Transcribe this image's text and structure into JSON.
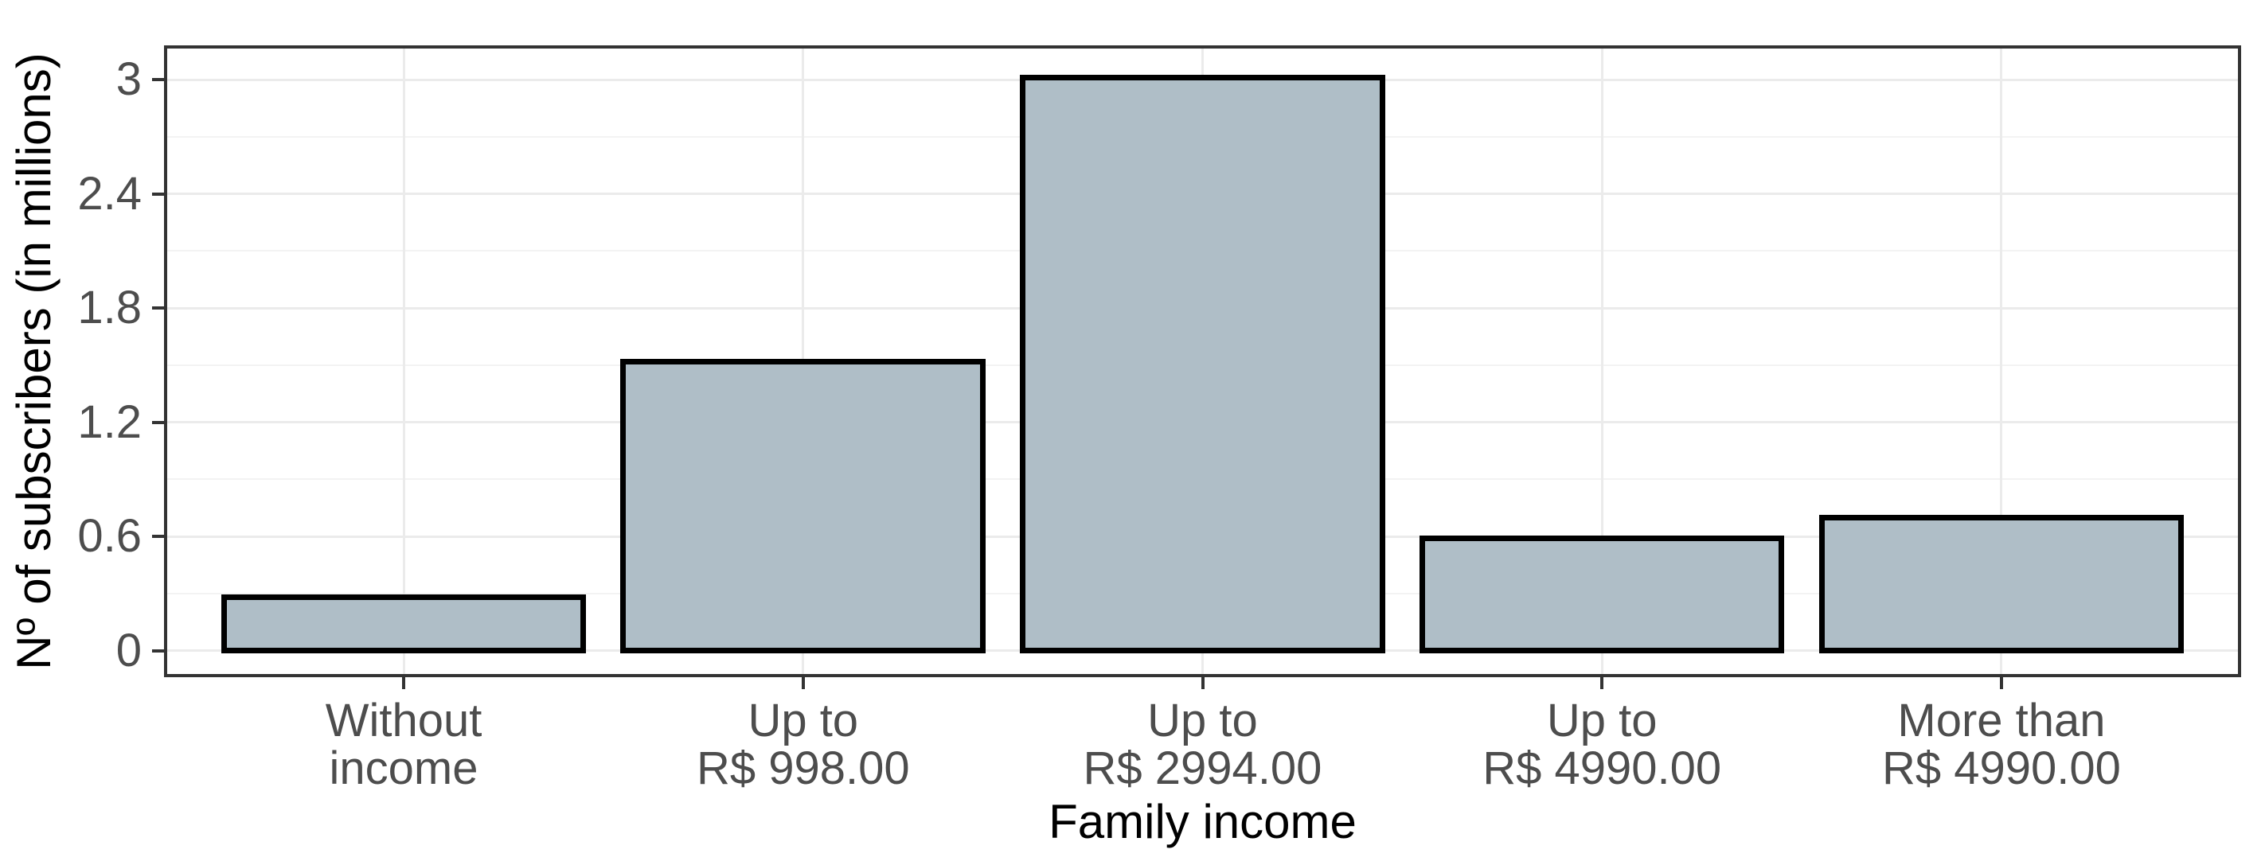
{
  "figure": {
    "background": "#FFFFFF"
  },
  "chart_data": {
    "type": "bar",
    "title": "",
    "xlabel": "Family income",
    "ylabel": "Nº of subscribers (in millions)",
    "categories": [
      [
        "Without",
        "income"
      ],
      [
        "Up to",
        "R$ 998.00"
      ],
      [
        "Up to",
        "R$ 2994.00"
      ],
      [
        "Up to",
        "R$ 4990.00"
      ],
      [
        "More than",
        "R$ 4990.00"
      ]
    ],
    "values": [
      0.28,
      1.52,
      3.01,
      0.59,
      0.7
    ],
    "yticks": [
      0,
      0.6,
      1.2,
      1.8,
      2.4,
      3
    ],
    "ytick_labels": [
      "0",
      "0.6",
      "1.2",
      "1.8",
      "2.4",
      "3"
    ],
    "minor_yticks": [
      0.3,
      0.9,
      1.5,
      2.1,
      2.7
    ],
    "ylim": [
      -0.14,
      3.18
    ],
    "bar_width_fraction": 0.9,
    "x_expand": 0.6,
    "grid": "horizontal major+minor, vertical major at category centers",
    "legend": "none"
  },
  "style": {
    "bar_fill": "#AFBEC7",
    "bar_stroke": "#000000",
    "panel_border": "#333333",
    "grid_major": "#EBEBEB",
    "grid_minor": "#F3F3F3",
    "tick_color": "#333333",
    "axis_text_color": "#4D4D4D",
    "axis_title_color": "#000000",
    "background": "#FFFFFF"
  }
}
